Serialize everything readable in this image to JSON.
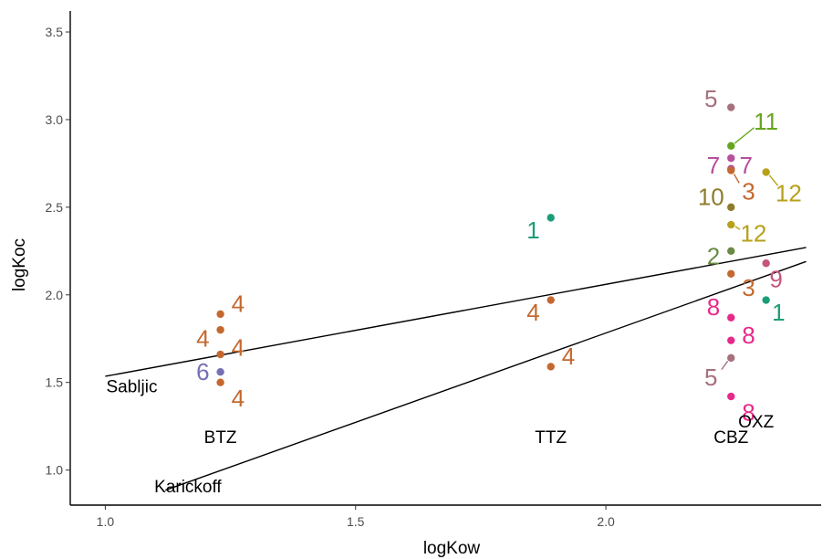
{
  "chart_data": {
    "type": "scatter",
    "title": "",
    "xlabel": "logKow",
    "ylabel": "logKoc",
    "xlim": [
      0.93,
      2.43
    ],
    "ylim": [
      0.8,
      3.62
    ],
    "x_ticks": [
      1.0,
      1.5,
      2.0
    ],
    "x_tick_labels": [
      "1.0",
      "1.5",
      "2.0"
    ],
    "y_ticks": [
      1.0,
      1.5,
      2.0,
      2.5,
      3.0,
      3.5
    ],
    "y_tick_labels": [
      "1.0",
      "1.5",
      "2.0",
      "2.5",
      "3.0",
      "3.5"
    ],
    "grid": false,
    "legend": "none",
    "points": [
      {
        "x": 1.23,
        "y": 1.89,
        "label": "4",
        "color": "#C4682F",
        "lx": 1.265,
        "ly": 1.95
      },
      {
        "x": 1.23,
        "y": 1.8,
        "label": "4",
        "color": "#C4682F",
        "lx": 1.195,
        "ly": 1.75
      },
      {
        "x": 1.23,
        "y": 1.66,
        "label": "4",
        "color": "#C4682F",
        "lx": 1.265,
        "ly": 1.7
      },
      {
        "x": 1.23,
        "y": 1.56,
        "label": "6",
        "color": "#7570B3",
        "lx": 1.195,
        "ly": 1.56
      },
      {
        "x": 1.23,
        "y": 1.5,
        "label": "4",
        "color": "#C4682F",
        "lx": 1.265,
        "ly": 1.41
      },
      {
        "x": 1.89,
        "y": 2.44,
        "label": "1",
        "color": "#1B9E77",
        "lx": 1.855,
        "ly": 2.37
      },
      {
        "x": 1.89,
        "y": 1.97,
        "label": "4",
        "color": "#C4682F",
        "lx": 1.855,
        "ly": 1.9
      },
      {
        "x": 1.89,
        "y": 1.59,
        "label": "4",
        "color": "#C4682F",
        "lx": 1.925,
        "ly": 1.65
      },
      {
        "x": 2.25,
        "y": 3.07,
        "label": "5",
        "color": "#A6707C",
        "lx": 2.21,
        "ly": 3.12
      },
      {
        "x": 2.25,
        "y": 2.85,
        "label": "11",
        "color": "#66A61E",
        "lx": 2.32,
        "ly": 2.99
      },
      {
        "x": 2.25,
        "y": 2.78,
        "label": "7",
        "color": "#B5509B",
        "lx": 2.215,
        "ly": 2.74
      },
      {
        "x": 2.25,
        "y": 2.72,
        "label": "7",
        "color": "#B5509B",
        "lx": 2.28,
        "ly": 2.74
      },
      {
        "x": 2.32,
        "y": 2.7,
        "label": "12",
        "color": "#B8A11A",
        "lx": 2.365,
        "ly": 2.58
      },
      {
        "x": 2.25,
        "y": 2.71,
        "label": "3",
        "color": "#C4682F",
        "lx": 2.285,
        "ly": 2.59
      },
      {
        "x": 2.25,
        "y": 2.5,
        "label": "10",
        "color": "#8F7C2C",
        "lx": 2.21,
        "ly": 2.56
      },
      {
        "x": 2.25,
        "y": 2.4,
        "label": "12",
        "color": "#B8A11A",
        "lx": 2.295,
        "ly": 2.35
      },
      {
        "x": 2.25,
        "y": 2.25,
        "label": "2",
        "color": "#6B8A46",
        "lx": 2.215,
        "ly": 2.22
      },
      {
        "x": 2.32,
        "y": 2.18,
        "label": "9",
        "color": "#C7557A",
        "lx": 2.34,
        "ly": 2.09
      },
      {
        "x": 2.25,
        "y": 2.12,
        "label": "3",
        "color": "#C4682F",
        "lx": 2.285,
        "ly": 2.04
      },
      {
        "x": 2.32,
        "y": 1.97,
        "label": "1",
        "color": "#1B9E77",
        "lx": 2.345,
        "ly": 1.9
      },
      {
        "x": 2.25,
        "y": 1.87,
        "label": "8",
        "color": "#E7298A",
        "lx": 2.215,
        "ly": 1.93
      },
      {
        "x": 2.25,
        "y": 1.74,
        "label": "8",
        "color": "#E7298A",
        "lx": 2.285,
        "ly": 1.77
      },
      {
        "x": 2.25,
        "y": 1.64,
        "label": "5",
        "color": "#A6707C",
        "lx": 2.21,
        "ly": 1.53
      },
      {
        "x": 2.25,
        "y": 1.42,
        "label": "8",
        "color": "#E7298A",
        "lx": 2.285,
        "ly": 1.33
      }
    ],
    "lines": [
      {
        "label": "Sabljic",
        "x1": 1.0,
        "y1": 1.535,
        "x2": 2.4,
        "y2": 2.27
      },
      {
        "label": "Karickoff",
        "x1": 1.12,
        "y1": 0.885,
        "x2": 2.4,
        "y2": 2.19
      }
    ],
    "annotations": [
      {
        "text": "Sabljic",
        "x": 1.053,
        "y": 1.48
      },
      {
        "text": "Karickoff",
        "x": 1.165,
        "y": 0.91
      },
      {
        "text": "BTZ",
        "x": 1.23,
        "y": 1.19
      },
      {
        "text": "TTZ",
        "x": 1.89,
        "y": 1.19
      },
      {
        "text": "CBZ",
        "x": 2.25,
        "y": 1.19
      },
      {
        "text": "OXZ",
        "x": 2.3,
        "y": 1.28
      }
    ]
  }
}
